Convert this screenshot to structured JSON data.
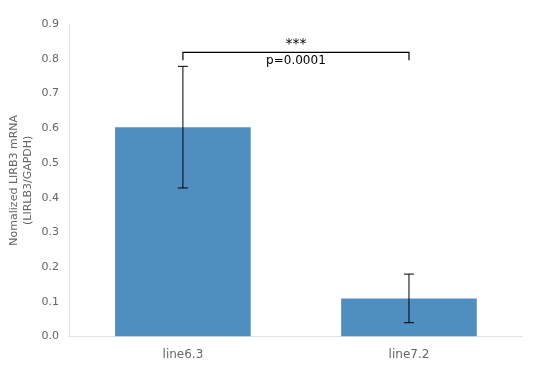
{
  "chart_data": {
    "type": "bar",
    "categories": [
      "line6.3",
      "line7.2"
    ],
    "values": [
      0.603,
      0.11
    ],
    "errors": [
      0.175,
      0.07
    ],
    "color": "#4f8fbf",
    "ylabel": "Nomalized LIRB3 mRNA\n(LIRLB3/GAPDH)",
    "ylim": [
      0,
      0.9
    ],
    "yticks": [
      {
        "value": 0,
        "label": "0.0"
      },
      0.1,
      0.2,
      0.3,
      0.4,
      0.5,
      0.6,
      0.7,
      0.8,
      0.9
    ],
    "grid": false,
    "annotations": [
      "***",
      "p=0.0001"
    ]
  }
}
